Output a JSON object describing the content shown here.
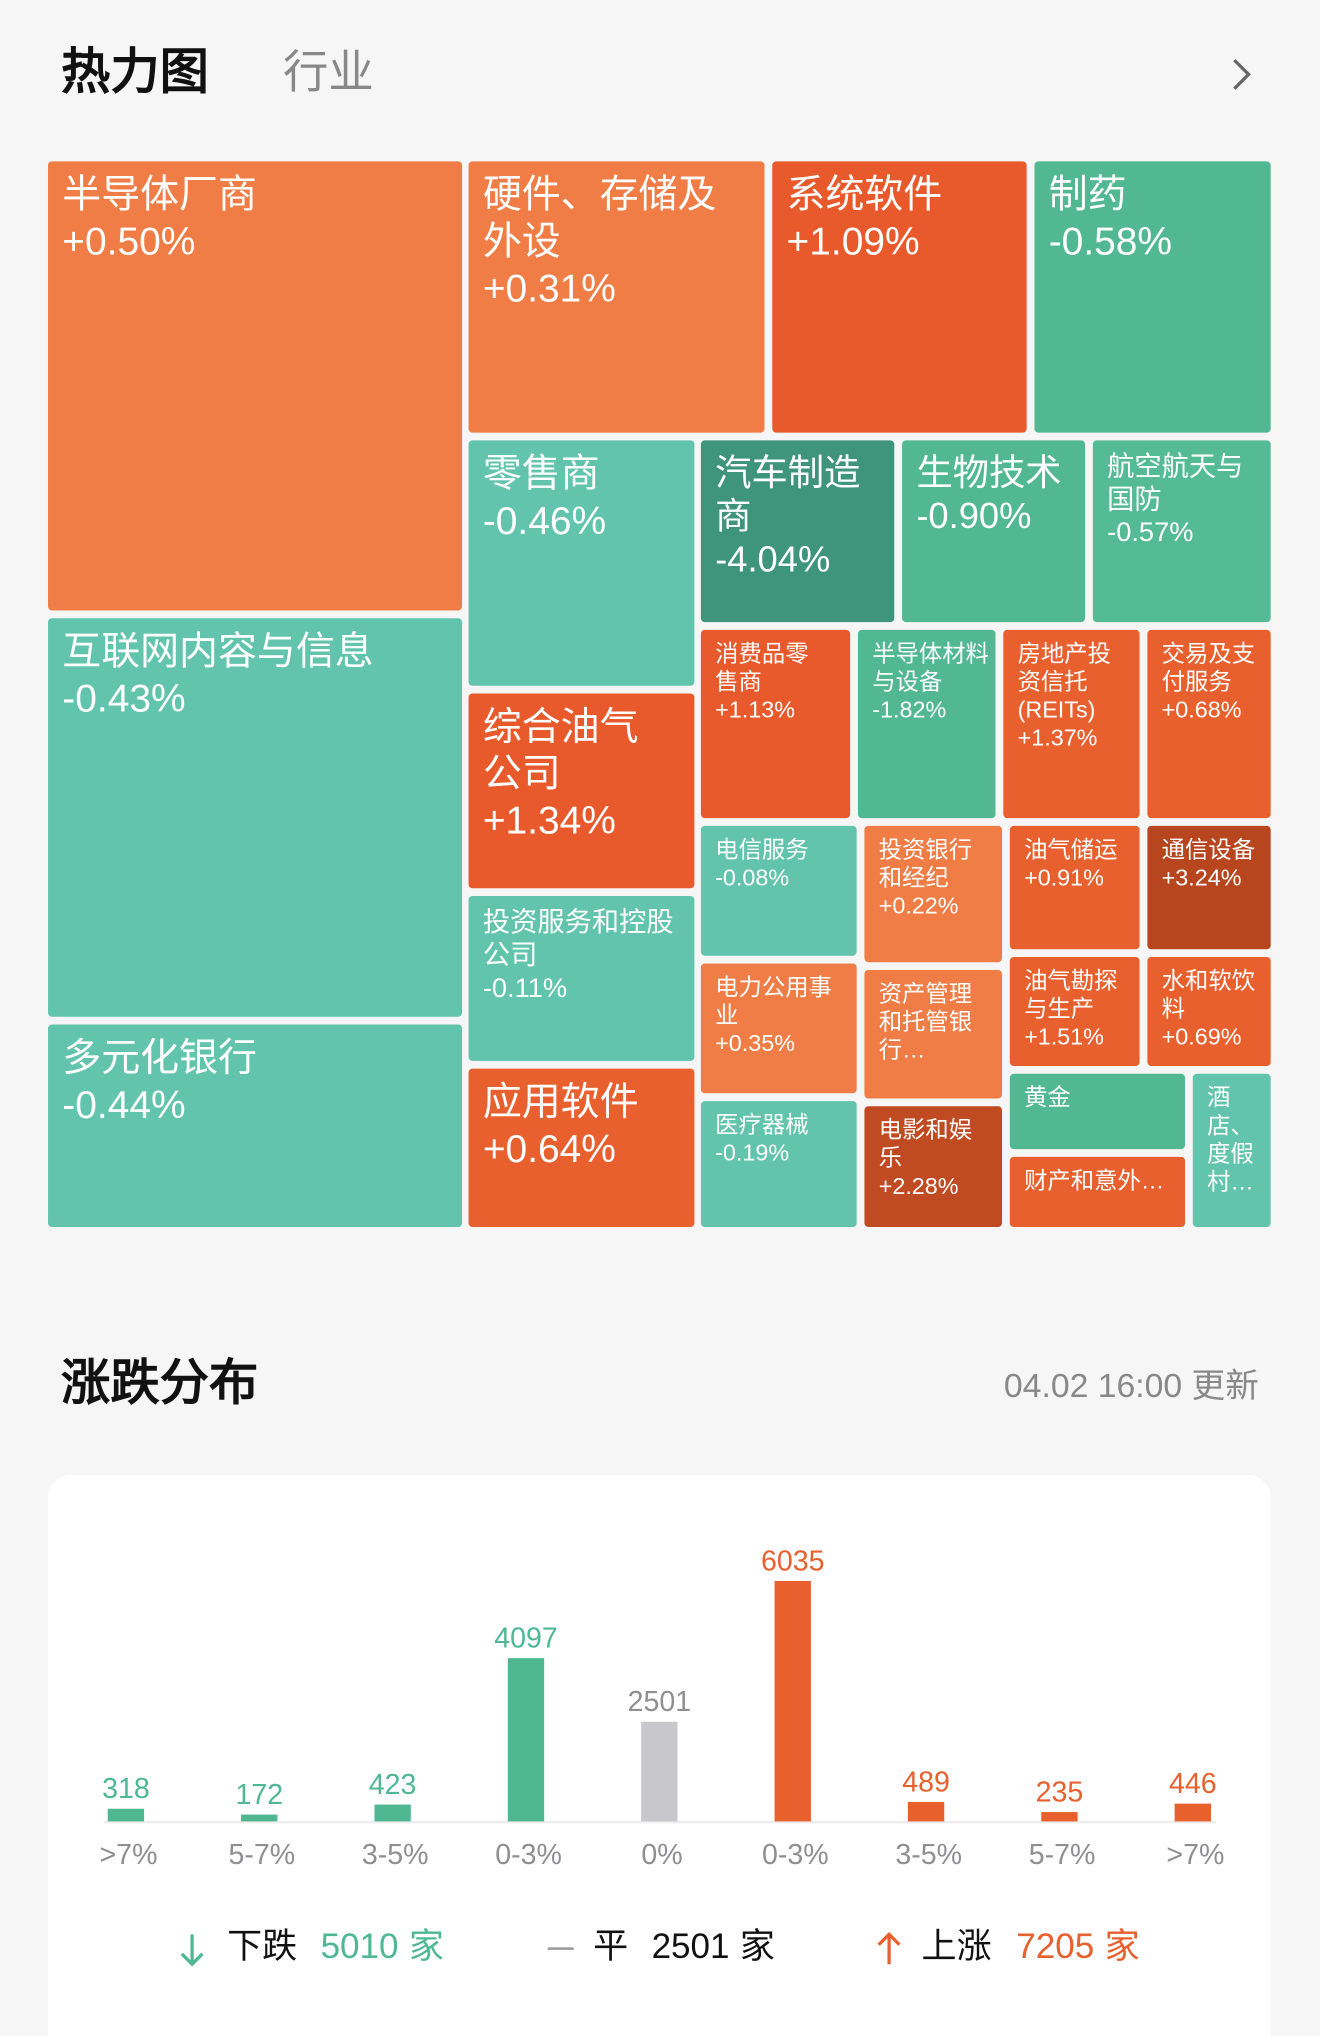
{
  "header": {
    "title": "热力图",
    "tab": "行业"
  },
  "treemap": {
    "tiles": [
      {
        "label": "半导体厂商",
        "change": "+0.50%",
        "color": "#ef7d45"
      },
      {
        "label": "硬件、存储及外设",
        "change": "+0.31%",
        "color": "#ef7d45"
      },
      {
        "label": "系统软件",
        "change": "+1.09%",
        "color": "#e85a2c"
      },
      {
        "label": "制药",
        "change": "-0.58%",
        "color": "#52b894"
      },
      {
        "label": "互联网内容与信息",
        "change": "-0.43%",
        "color": "#62c4ac"
      },
      {
        "label": "多元化银行",
        "change": "-0.44%",
        "color": "#62c4ac"
      },
      {
        "label": "零售商",
        "change": "-0.46%",
        "color": "#62c4ac"
      },
      {
        "label": "综合油气公司",
        "change": "+1.34%",
        "color": "#e85a2c"
      },
      {
        "label": "投资服务和控股公司",
        "change": "-0.11%",
        "color": "#62c4ac"
      },
      {
        "label": "应用软件",
        "change": "+0.64%",
        "color": "#e8602e"
      },
      {
        "label": "汽车制造商",
        "change": "-4.04%",
        "color": "#3e957a"
      },
      {
        "label": "生物技术",
        "change": "-0.90%",
        "color": "#52b894"
      },
      {
        "label": "航空航天与国防",
        "change": "-0.57%",
        "color": "#55bb97"
      },
      {
        "label": "消费品零售商",
        "change": "+1.13%",
        "color": "#e85a2c"
      },
      {
        "label": "半导体材料与设备",
        "change": "-1.82%",
        "color": "#52b894"
      },
      {
        "label": "房地产投资信托(REITs)",
        "change": "+1.37%",
        "color": "#e8602e"
      },
      {
        "label": "交易及支付服务",
        "change": "+0.68%",
        "color": "#e8602e"
      },
      {
        "label": "电信服务",
        "change": "-0.08%",
        "color": "#62c4ac"
      },
      {
        "label": "投资银行和经纪",
        "change": "+0.22%",
        "color": "#ef7d45"
      },
      {
        "label": "油气储运",
        "change": "+0.91%",
        "color": "#e8602e"
      },
      {
        "label": "通信设备",
        "change": "+3.24%",
        "color": "#b7461f"
      },
      {
        "label": "电力公用事业",
        "change": "+0.35%",
        "color": "#ef7d45"
      },
      {
        "label": "资产管理和托管银行…",
        "color": "#ef7d45"
      },
      {
        "label": "油气勘探与生产",
        "change": "+1.51%",
        "color": "#e8602e"
      },
      {
        "label": "水和软饮料",
        "change": "+0.69%",
        "color": "#e8602e"
      },
      {
        "label": "医疗器械",
        "change": "-0.19%",
        "color": "#62c4ac"
      },
      {
        "label": "电影和娱乐",
        "change": "+2.28%",
        "color": "#c04a22"
      },
      {
        "label": "黄金",
        "color": "#52b894"
      },
      {
        "label": "财产和意外…",
        "color": "#e8602e"
      },
      {
        "label": "酒店、度假村…",
        "color": "#62c4ac"
      }
    ]
  },
  "distribution": {
    "title": "涨跌分布",
    "updated": "04.02 16:00 更新",
    "chart_data": {
      "type": "bar",
      "categories": [
        ">7%",
        "5-7%",
        "3-5%",
        "0-3%",
        "0%",
        "0-3%",
        "3-5%",
        "5-7%",
        ">7%"
      ],
      "values": [
        318,
        172,
        423,
        4097,
        2501,
        6035,
        489,
        235,
        446
      ],
      "colors": [
        "#4fb893",
        "#4fb893",
        "#4fb893",
        "#4fb893",
        "#c8c8cc",
        "#e8602e",
        "#e8602e",
        "#e8602e",
        "#e8602e"
      ]
    },
    "summary": [
      {
        "label": "下跌",
        "count": 5010,
        "unit": "家"
      },
      {
        "label": "平",
        "count": 2501,
        "unit": "家"
      },
      {
        "label": "上涨",
        "count": 7205,
        "unit": "家"
      }
    ]
  }
}
